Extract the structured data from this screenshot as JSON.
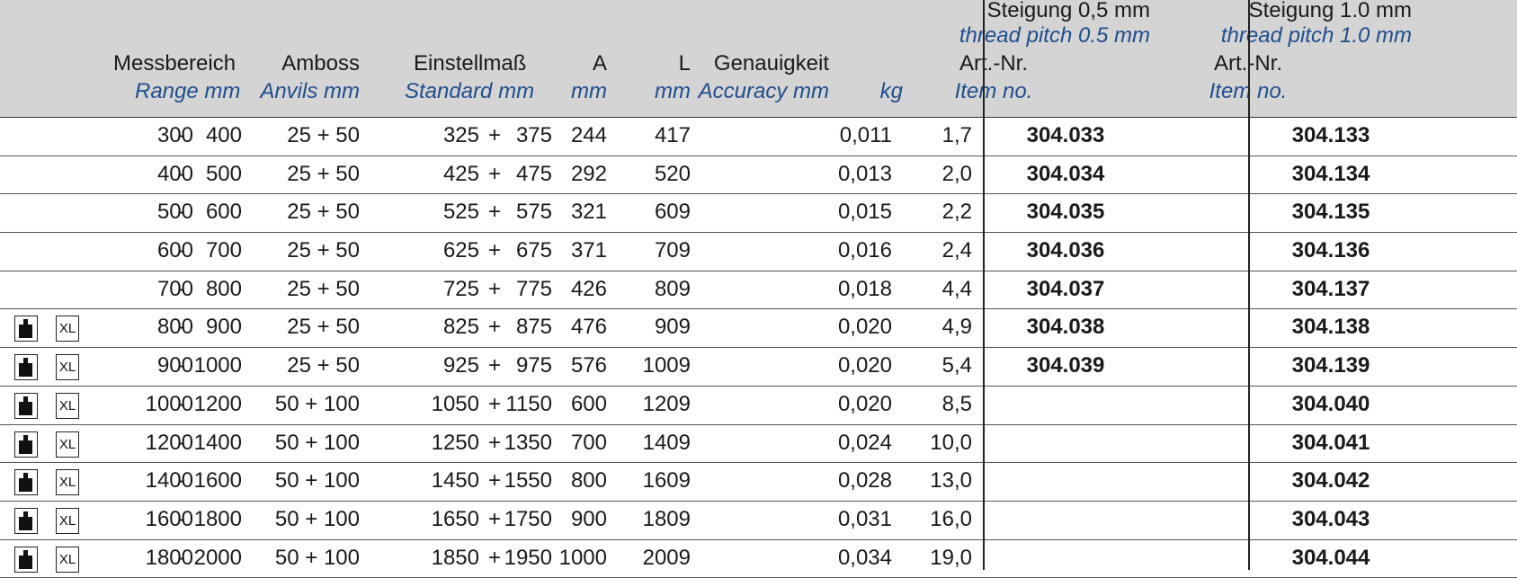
{
  "header": {
    "range": {
      "de": "Messbereich",
      "en": "Range mm"
    },
    "anvils": {
      "de": "Amboss",
      "en": "Anvils mm"
    },
    "standard": {
      "de": "Einstellmaß",
      "en": "Standard mm"
    },
    "a": {
      "de": "A",
      "en": "mm"
    },
    "l": {
      "de": "L",
      "en": "mm"
    },
    "accuracy": {
      "de": "Genauigkeit",
      "en": "Accuracy mm"
    },
    "kg": {
      "en": "kg"
    },
    "pitch05": {
      "de": "Steigung 0,5 mm",
      "en": "thread pitch 0.5 mm",
      "art_de": "Art.-Nr.",
      "art_en": "Item no."
    },
    "pitch10": {
      "de": "Steigung 1.0 mm",
      "en": "thread pitch 1.0 mm",
      "art_de": "Art.-Nr.",
      "art_en": "Item no."
    }
  },
  "rows": [
    {
      "icons": false,
      "from": "300",
      "dash": "-",
      "to": "400",
      "anvils": "25 + 50",
      "std1": "325",
      "plus": "+",
      "std2": "375",
      "a": "244",
      "l": "417",
      "acc": "0,011",
      "kg": "1,7",
      "art05": "304.033",
      "art10": "304.133"
    },
    {
      "icons": false,
      "from": "400",
      "dash": "-",
      "to": "500",
      "anvils": "25 + 50",
      "std1": "425",
      "plus": "+",
      "std2": "475",
      "a": "292",
      "l": "520",
      "acc": "0,013",
      "kg": "2,0",
      "art05": "304.034",
      "art10": "304.134"
    },
    {
      "icons": false,
      "from": "500",
      "dash": "-",
      "to": "600",
      "anvils": "25 + 50",
      "std1": "525",
      "plus": "+",
      "std2": "575",
      "a": "321",
      "l": "609",
      "acc": "0,015",
      "kg": "2,2",
      "art05": "304.035",
      "art10": "304.135"
    },
    {
      "icons": false,
      "from": "600",
      "dash": "-",
      "to": "700",
      "anvils": "25 + 50",
      "std1": "625",
      "plus": "+",
      "std2": "675",
      "a": "371",
      "l": "709",
      "acc": "0,016",
      "kg": "2,4",
      "art05": "304.036",
      "art10": "304.136"
    },
    {
      "icons": false,
      "from": "700",
      "dash": "-",
      "to": "800",
      "anvils": "25 + 50",
      "std1": "725",
      "plus": "+",
      "std2": "775",
      "a": "426",
      "l": "809",
      "acc": "0,018",
      "kg": "4,4",
      "art05": "304.037",
      "art10": "304.137"
    },
    {
      "icons": true,
      "from": "800",
      "dash": "-",
      "to": "900",
      "anvils": "25 + 50",
      "std1": "825",
      "plus": "+",
      "std2": "875",
      "a": "476",
      "l": "909",
      "acc": "0,020",
      "kg": "4,9",
      "art05": "304.038",
      "art10": "304.138"
    },
    {
      "icons": true,
      "from": "900",
      "dash": "-",
      "to": "1000",
      "anvils": "25 + 50",
      "std1": "925",
      "plus": "+",
      "std2": "975",
      "a": "576",
      "l": "1009",
      "acc": "0,020",
      "kg": "5,4",
      "art05": "304.039",
      "art10": "304.139"
    },
    {
      "icons": true,
      "from": "1000",
      "dash": "-",
      "to": "1200",
      "anvils": "50 + 100",
      "std1": "1050",
      "plus": "+",
      "std2": "1150",
      "a": "600",
      "l": "1209",
      "acc": "0,020",
      "kg": "8,5",
      "art05": "",
      "art10": "304.040"
    },
    {
      "icons": true,
      "from": "1200",
      "dash": "-",
      "to": "1400",
      "anvils": "50 + 100",
      "std1": "1250",
      "plus": "+",
      "std2": "1350",
      "a": "700",
      "l": "1409",
      "acc": "0,024",
      "kg": "10,0",
      "art05": "",
      "art10": "304.041"
    },
    {
      "icons": true,
      "from": "1400",
      "dash": "-",
      "to": "1600",
      "anvils": "50 + 100",
      "std1": "1450",
      "plus": "+",
      "std2": "1550",
      "a": "800",
      "l": "1609",
      "acc": "0,028",
      "kg": "13,0",
      "art05": "",
      "art10": "304.042"
    },
    {
      "icons": true,
      "from": "1600",
      "dash": "-",
      "to": "1800",
      "anvils": "50 + 100",
      "std1": "1650",
      "plus": "+",
      "std2": "1750",
      "a": "900",
      "l": "1809",
      "acc": "0,031",
      "kg": "16,0",
      "art05": "",
      "art10": "304.043"
    },
    {
      "icons": true,
      "from": "1800",
      "dash": "-",
      "to": "2000",
      "anvils": "50 + 100",
      "std1": "1850",
      "plus": "+",
      "std2": "1950",
      "a": "1000",
      "l": "2009",
      "acc": "0,034",
      "kg": "19,0",
      "art05": "",
      "art10": "304.044"
    }
  ],
  "icon_names": {
    "weight": "weight-icon",
    "xl": "xl-size-icon"
  },
  "icon_text": {
    "xl": "XL"
  },
  "colors": {
    "header_bg": "#d4d4d5",
    "english_text": "#1f4e8c"
  }
}
